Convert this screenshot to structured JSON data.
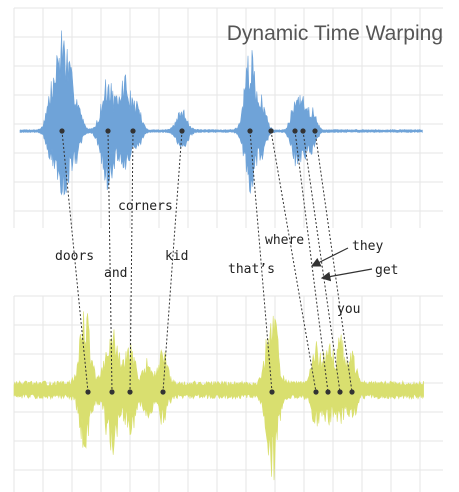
{
  "title": "Dynamic Time Warping",
  "colors": {
    "top_wave": "#6fa3d8",
    "bottom_wave": "#d9df6f",
    "grid": "#e6e6e6",
    "connector": "#333333",
    "dot": "#333333",
    "arrow": "#333333"
  },
  "words": [
    {
      "id": "doors",
      "label": "doors"
    },
    {
      "id": "and",
      "label": "and"
    },
    {
      "id": "corners",
      "label": "corners"
    },
    {
      "id": "kid",
      "label": "kid"
    },
    {
      "id": "thats",
      "label": "that’s"
    },
    {
      "id": "where",
      "label": "where"
    },
    {
      "id": "they",
      "label": "they"
    },
    {
      "id": "get",
      "label": "get"
    },
    {
      "id": "you",
      "label": "you"
    }
  ]
}
